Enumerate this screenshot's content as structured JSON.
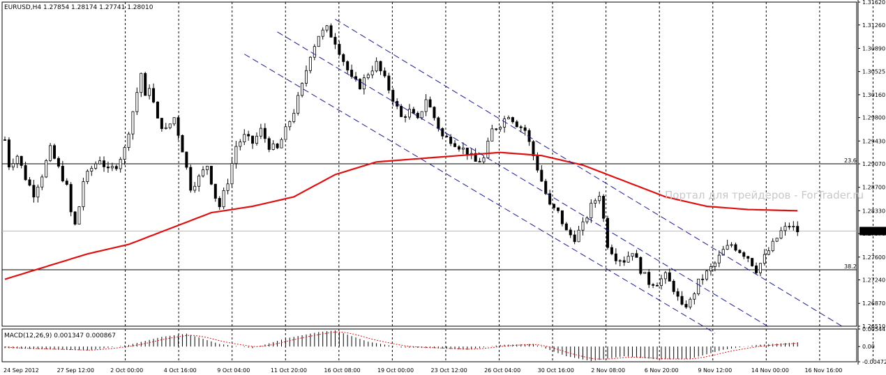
{
  "chart_data": [
    {
      "type": "candlestick",
      "symbol_header": "EURUSD,H4  1.27854 1.28174 1.27741 1.28010",
      "price_ticks": [
        "1.31620",
        "1.31260",
        "1.30890",
        "1.30525",
        "1.30160",
        "1.29800",
        "1.29430",
        "1.29070",
        "1.28700",
        "1.28330",
        "1.27970",
        "1.27600",
        "1.27240",
        "1.26870",
        "1.26510"
      ],
      "ylim": [
        1.2651,
        1.3162
      ],
      "last_price_label": "1.28010",
      "fib_levels": [
        {
          "label": "23.6",
          "price": 1.2907
        },
        {
          "label": "38.2",
          "price": 1.274
        }
      ],
      "moving_average_color": "#dd1111",
      "channel_color": "#1a1a90",
      "watermark": "Портал для трейдеров - ForTrader.ru",
      "time_labels": [
        "24 Sep 2012",
        "27 Sep 12:00",
        "2 Oct 00:00",
        "4 Oct 16:00",
        "9 Oct 04:00",
        "11 Oct 20:00",
        "16 Oct 08:00",
        "19 Oct 00:00",
        "23 Oct 12:00",
        "26 Oct 04:00",
        "30 Oct 16:00",
        "2 Nov 08:00",
        "6 Nov 20:00",
        "9 Nov 12:00",
        "14 Nov 00:00",
        "16 Nov 16:00"
      ],
      "price_path": [
        [
          0,
          1.2945
        ],
        [
          1,
          1.2905
        ],
        [
          3,
          1.292
        ],
        [
          5,
          1.2885
        ],
        [
          7,
          1.286
        ],
        [
          9,
          1.289
        ],
        [
          11,
          1.293
        ],
        [
          13,
          1.29
        ],
        [
          15,
          1.287
        ],
        [
          16,
          1.283
        ],
        [
          17,
          1.281
        ],
        [
          18,
          1.284
        ],
        [
          19,
          1.288
        ],
        [
          21,
          1.29
        ],
        [
          23,
          1.2915
        ],
        [
          25,
          1.2895
        ],
        [
          27,
          1.2905
        ],
        [
          29,
          1.293
        ],
        [
          31,
          1.299
        ],
        [
          33,
          1.305
        ],
        [
          34,
          1.301
        ],
        [
          35,
          1.303
        ],
        [
          37,
          1.2975
        ],
        [
          39,
          1.296
        ],
        [
          41,
          1.298
        ],
        [
          43,
          1.293
        ],
        [
          45,
          1.287
        ],
        [
          47,
          1.2885
        ],
        [
          49,
          1.2905
        ],
        [
          51,
          1.2855
        ],
        [
          52,
          1.284
        ],
        [
          54,
          1.288
        ],
        [
          56,
          1.2935
        ],
        [
          58,
          1.295
        ],
        [
          60,
          1.294
        ],
        [
          62,
          1.296
        ],
        [
          64,
          1.2935
        ],
        [
          66,
          1.293
        ],
        [
          68,
          1.296
        ],
        [
          70,
          1.299
        ],
        [
          72,
          1.303
        ],
        [
          74,
          1.308
        ],
        [
          76,
          1.311
        ],
        [
          78,
          1.312
        ],
        [
          80,
          1.31
        ],
        [
          82,
          1.307
        ],
        [
          84,
          1.304
        ],
        [
          86,
          1.303
        ],
        [
          88,
          1.305
        ],
        [
          90,
          1.3065
        ],
        [
          92,
          1.304
        ],
        [
          94,
          1.301
        ],
        [
          96,
          1.298
        ],
        [
          98,
          1.299
        ],
        [
          100,
          1.2975
        ],
        [
          102,
          1.301
        ],
        [
          104,
          1.298
        ],
        [
          106,
          1.295
        ],
        [
          108,
          1.2945
        ],
        [
          110,
          1.2935
        ],
        [
          112,
          1.2925
        ],
        [
          114,
          1.291
        ],
        [
          116,
          1.2915
        ],
        [
          118,
          1.296
        ],
        [
          120,
          1.297
        ],
        [
          122,
          1.2985
        ],
        [
          124,
          1.297
        ],
        [
          126,
          1.296
        ],
        [
          128,
          1.292
        ],
        [
          130,
          1.288
        ],
        [
          132,
          1.284
        ],
        [
          134,
          1.283
        ],
        [
          136,
          1.28
        ],
        [
          138,
          1.279
        ],
        [
          140,
          1.281
        ],
        [
          142,
          1.284
        ],
        [
          144,
          1.286
        ],
        [
          146,
          1.278
        ],
        [
          148,
          1.276
        ],
        [
          150,
          1.2755
        ],
        [
          152,
          1.277
        ],
        [
          154,
          1.274
        ],
        [
          156,
          1.272
        ],
        [
          158,
          1.272
        ],
        [
          160,
          1.273
        ],
        [
          162,
          1.271
        ],
        [
          164,
          1.268
        ],
        [
          166,
          1.269
        ],
        [
          168,
          1.272
        ],
        [
          170,
          1.2735
        ],
        [
          172,
          1.275
        ],
        [
          174,
          1.277
        ],
        [
          176,
          1.278
        ],
        [
          178,
          1.277
        ],
        [
          180,
          1.276
        ],
        [
          182,
          1.274
        ],
        [
          184,
          1.276
        ],
        [
          186,
          1.278
        ],
        [
          188,
          1.28
        ],
        [
          190,
          1.281
        ],
        [
          192,
          1.2801
        ]
      ],
      "ma_path": [
        [
          0,
          1.2725
        ],
        [
          10,
          1.2745
        ],
        [
          20,
          1.2765
        ],
        [
          30,
          1.278
        ],
        [
          40,
          1.2805
        ],
        [
          50,
          1.283
        ],
        [
          60,
          1.284
        ],
        [
          70,
          1.2855
        ],
        [
          80,
          1.289
        ],
        [
          90,
          1.291
        ],
        [
          100,
          1.2915
        ],
        [
          110,
          1.292
        ],
        [
          120,
          1.2925
        ],
        [
          130,
          1.292
        ],
        [
          140,
          1.2905
        ],
        [
          150,
          1.288
        ],
        [
          160,
          1.2855
        ],
        [
          170,
          1.284
        ],
        [
          180,
          1.2835
        ],
        [
          192,
          1.2833
        ]
      ],
      "channel_lines": [
        {
          "start": [
            58,
            1.308
          ],
          "end": [
            172,
            1.264
          ]
        },
        {
          "start": [
            66,
            1.3115
          ],
          "end": [
            185,
            1.265
          ]
        },
        {
          "start": [
            80,
            1.3135
          ],
          "end": [
            203,
            1.265
          ]
        }
      ]
    },
    {
      "type": "histogram",
      "indicator_label": "MACD(12,26,9) 0.001347 0.000867",
      "ticks": [
        "0.00544",
        "0.00",
        "-0.00472"
      ],
      "ylim": [
        -0.00472,
        0.00544
      ],
      "macd_path": [
        [
          0,
          -0.0005
        ],
        [
          20,
          -0.0012
        ],
        [
          30,
          0.0005
        ],
        [
          38,
          0.003
        ],
        [
          44,
          0.004
        ],
        [
          52,
          0.0008
        ],
        [
          60,
          -0.0005
        ],
        [
          68,
          0.0025
        ],
        [
          76,
          0.0045
        ],
        [
          80,
          0.005
        ],
        [
          88,
          0.0015
        ],
        [
          96,
          -0.0003
        ],
        [
          104,
          -0.0005
        ],
        [
          112,
          -0.001
        ],
        [
          120,
          0.0005
        ],
        [
          128,
          0.0008
        ],
        [
          136,
          -0.003
        ],
        [
          142,
          -0.0045
        ],
        [
          150,
          -0.003
        ],
        [
          158,
          -0.004
        ],
        [
          166,
          -0.0038
        ],
        [
          174,
          -0.001
        ],
        [
          182,
          0.0005
        ],
        [
          192,
          0.0013
        ]
      ],
      "signal_color": "#dd1111"
    }
  ]
}
